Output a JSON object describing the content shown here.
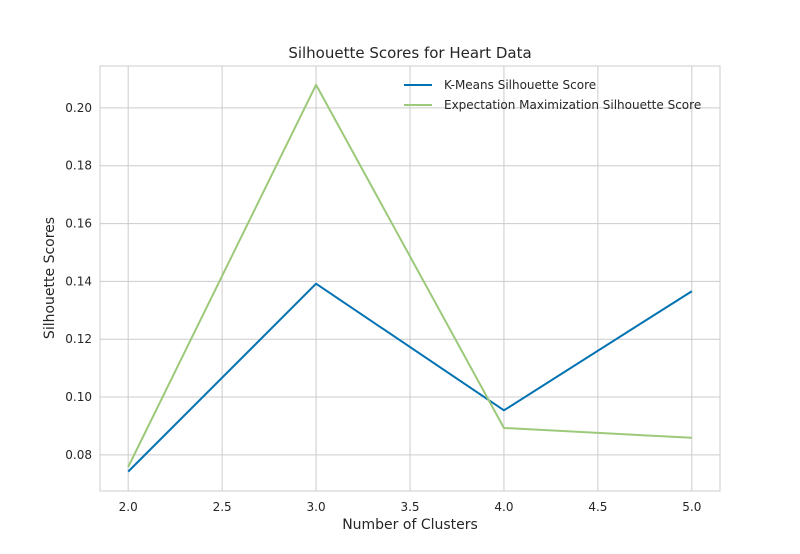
{
  "chart_data": {
    "type": "line",
    "title": "Silhouette Scores for Heart Data",
    "xlabel": "Number of Clusters",
    "ylabel": "Silhouette Scores",
    "x": [
      2.0,
      3.0,
      4.0,
      5.0
    ],
    "xlim": [
      1.85,
      5.15
    ],
    "ylim": [
      0.0675,
      0.2145
    ],
    "xticks": [
      "2.0",
      "2.5",
      "3.0",
      "3.5",
      "4.0",
      "4.5",
      "5.0"
    ],
    "yticks": [
      "0.08",
      "0.10",
      "0.12",
      "0.14",
      "0.16",
      "0.18",
      "0.20"
    ],
    "grid": true,
    "legend_position": "top-right",
    "series": [
      {
        "name": "K-Means Silhouette Score",
        "color": "#0072b2",
        "values": [
          0.0742,
          0.1392,
          0.0954,
          0.1366
        ]
      },
      {
        "name": "Expectation Maximization Silhouette Score",
        "color": "#9cc97a",
        "values": [
          0.0758,
          0.208,
          0.0893,
          0.0859
        ]
      }
    ]
  }
}
